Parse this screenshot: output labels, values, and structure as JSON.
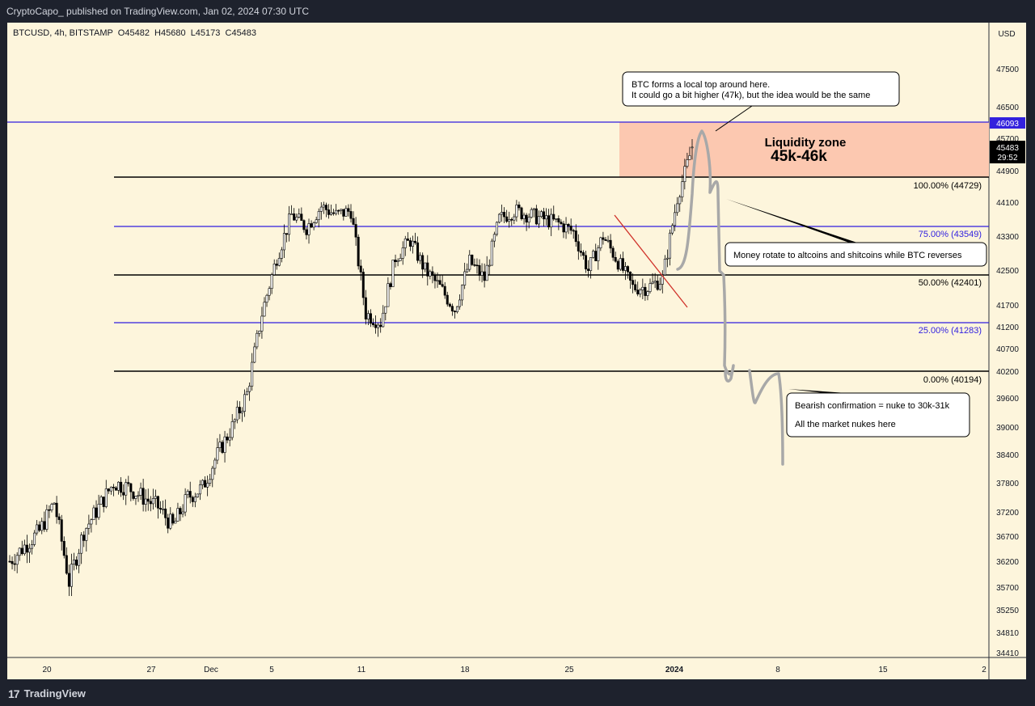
{
  "header": {
    "publish_line": "CryptoCapo_ published on TradingView.com, Jan 02, 2024 07:30 UTC"
  },
  "footer": {
    "brand_mark": "17",
    "brand": "TradingView"
  },
  "legend": {
    "symbol_line": "BTCUSD, 4h, BITSTAMP  O45482  H45680  L45173  C45483"
  },
  "currency_button": "USD",
  "colors": {
    "background": "#fdf5dc",
    "liquidity_zone": "#fcc8b0",
    "fib_black": "#000000",
    "fib_blue": "#2f1ee0",
    "trendline": "#d0322a",
    "projection": "#a8a8a8",
    "price_tag": "#000000",
    "level_tag": "#3322dd"
  },
  "chart_data": {
    "type": "candlestick",
    "symbol": "BTCUSD",
    "timeframe": "4h",
    "exchange": "BITSTAMP",
    "ohlc_last": {
      "open": 45482,
      "high": 45680,
      "low": 45173,
      "close": 45483
    },
    "y_ticks": [
      47500,
      46500,
      45700,
      44900,
      44100,
      43300,
      42500,
      41700,
      41200,
      40700,
      40200,
      39600,
      39000,
      38400,
      37800,
      37200,
      36700,
      36200,
      35700,
      35250,
      34810,
      34410
    ],
    "x_ticks": [
      "20",
      "27",
      "Dec",
      "5",
      "11",
      "18",
      "25",
      "2024",
      "8",
      "15",
      "2"
    ],
    "price_tags": {
      "level": "46093",
      "last_price": "45483",
      "countdown": "29:52"
    },
    "fib_levels": [
      {
        "label": "100.00% (44729)",
        "value": 44729
      },
      {
        "label": "75.00% (43549)",
        "value": 43549
      },
      {
        "label": "50.00% (42401)",
        "value": 42401
      },
      {
        "label": "25.00% (41283)",
        "value": 41283
      },
      {
        "label": "0.00% (40194)",
        "value": 40194
      }
    ],
    "horizontal_level": 46093,
    "liquidity_zone": {
      "title": "Liquidity zone",
      "range_label": "45k-46k",
      "from": 44729,
      "to": 46093
    },
    "close_path": [
      [
        "Nov 17",
        36200
      ],
      [
        "Nov 18",
        36500
      ],
      [
        "Nov 19",
        36800
      ],
      [
        "Nov 20",
        37400
      ],
      [
        "Nov 21",
        35800
      ],
      [
        "Nov 22",
        36800
      ],
      [
        "Nov 23",
        37300
      ],
      [
        "Nov 24",
        37800
      ],
      [
        "Nov 25",
        37700
      ],
      [
        "Nov 26",
        37500
      ],
      [
        "Nov 27",
        37300
      ],
      [
        "Nov 28",
        36900
      ],
      [
        "Nov 29",
        37500
      ],
      [
        "Nov 30",
        37700
      ],
      [
        "Dec 1",
        38400
      ],
      [
        "Dec 2",
        39000
      ],
      [
        "Dec 3",
        39700
      ],
      [
        "Dec 4",
        41500
      ],
      [
        "Dec 5",
        42800
      ],
      [
        "Dec 6",
        43800
      ],
      [
        "Dec 7",
        43500
      ],
      [
        "Dec 8",
        44000
      ],
      [
        "Dec 9",
        43800
      ],
      [
        "Dec 10",
        43900
      ],
      [
        "Dec 11",
        41500
      ],
      [
        "Dec 12",
        41300
      ],
      [
        "Dec 13",
        42800
      ],
      [
        "Dec 14",
        43200
      ],
      [
        "Dec 15",
        42500
      ],
      [
        "Dec 16",
        42100
      ],
      [
        "Dec 17",
        41600
      ],
      [
        "Dec 18",
        42700
      ],
      [
        "Dec 19",
        42300
      ],
      [
        "Dec 20",
        43700
      ],
      [
        "Dec 21",
        43900
      ],
      [
        "Dec 22",
        43800
      ],
      [
        "Dec 23",
        43700
      ],
      [
        "Dec 24",
        43600
      ],
      [
        "Dec 25",
        43400
      ],
      [
        "Dec 26",
        42500
      ],
      [
        "Dec 27",
        43300
      ],
      [
        "Dec 28",
        42700
      ],
      [
        "Dec 29",
        42100
      ],
      [
        "Dec 30",
        42100
      ],
      [
        "Dec 31",
        42300
      ],
      [
        "Jan 1",
        44200
      ],
      [
        "Jan 2",
        45483
      ]
    ],
    "notes": [
      "BTC forms a local top around here.\nIt could go a bit higher (47k), but the idea would be the same",
      "Money rotate to altcoins and shitcoins while BTC reverses",
      "Bearish confirmation = nuke to 30k-31k",
      "All the market nukes here"
    ]
  }
}
